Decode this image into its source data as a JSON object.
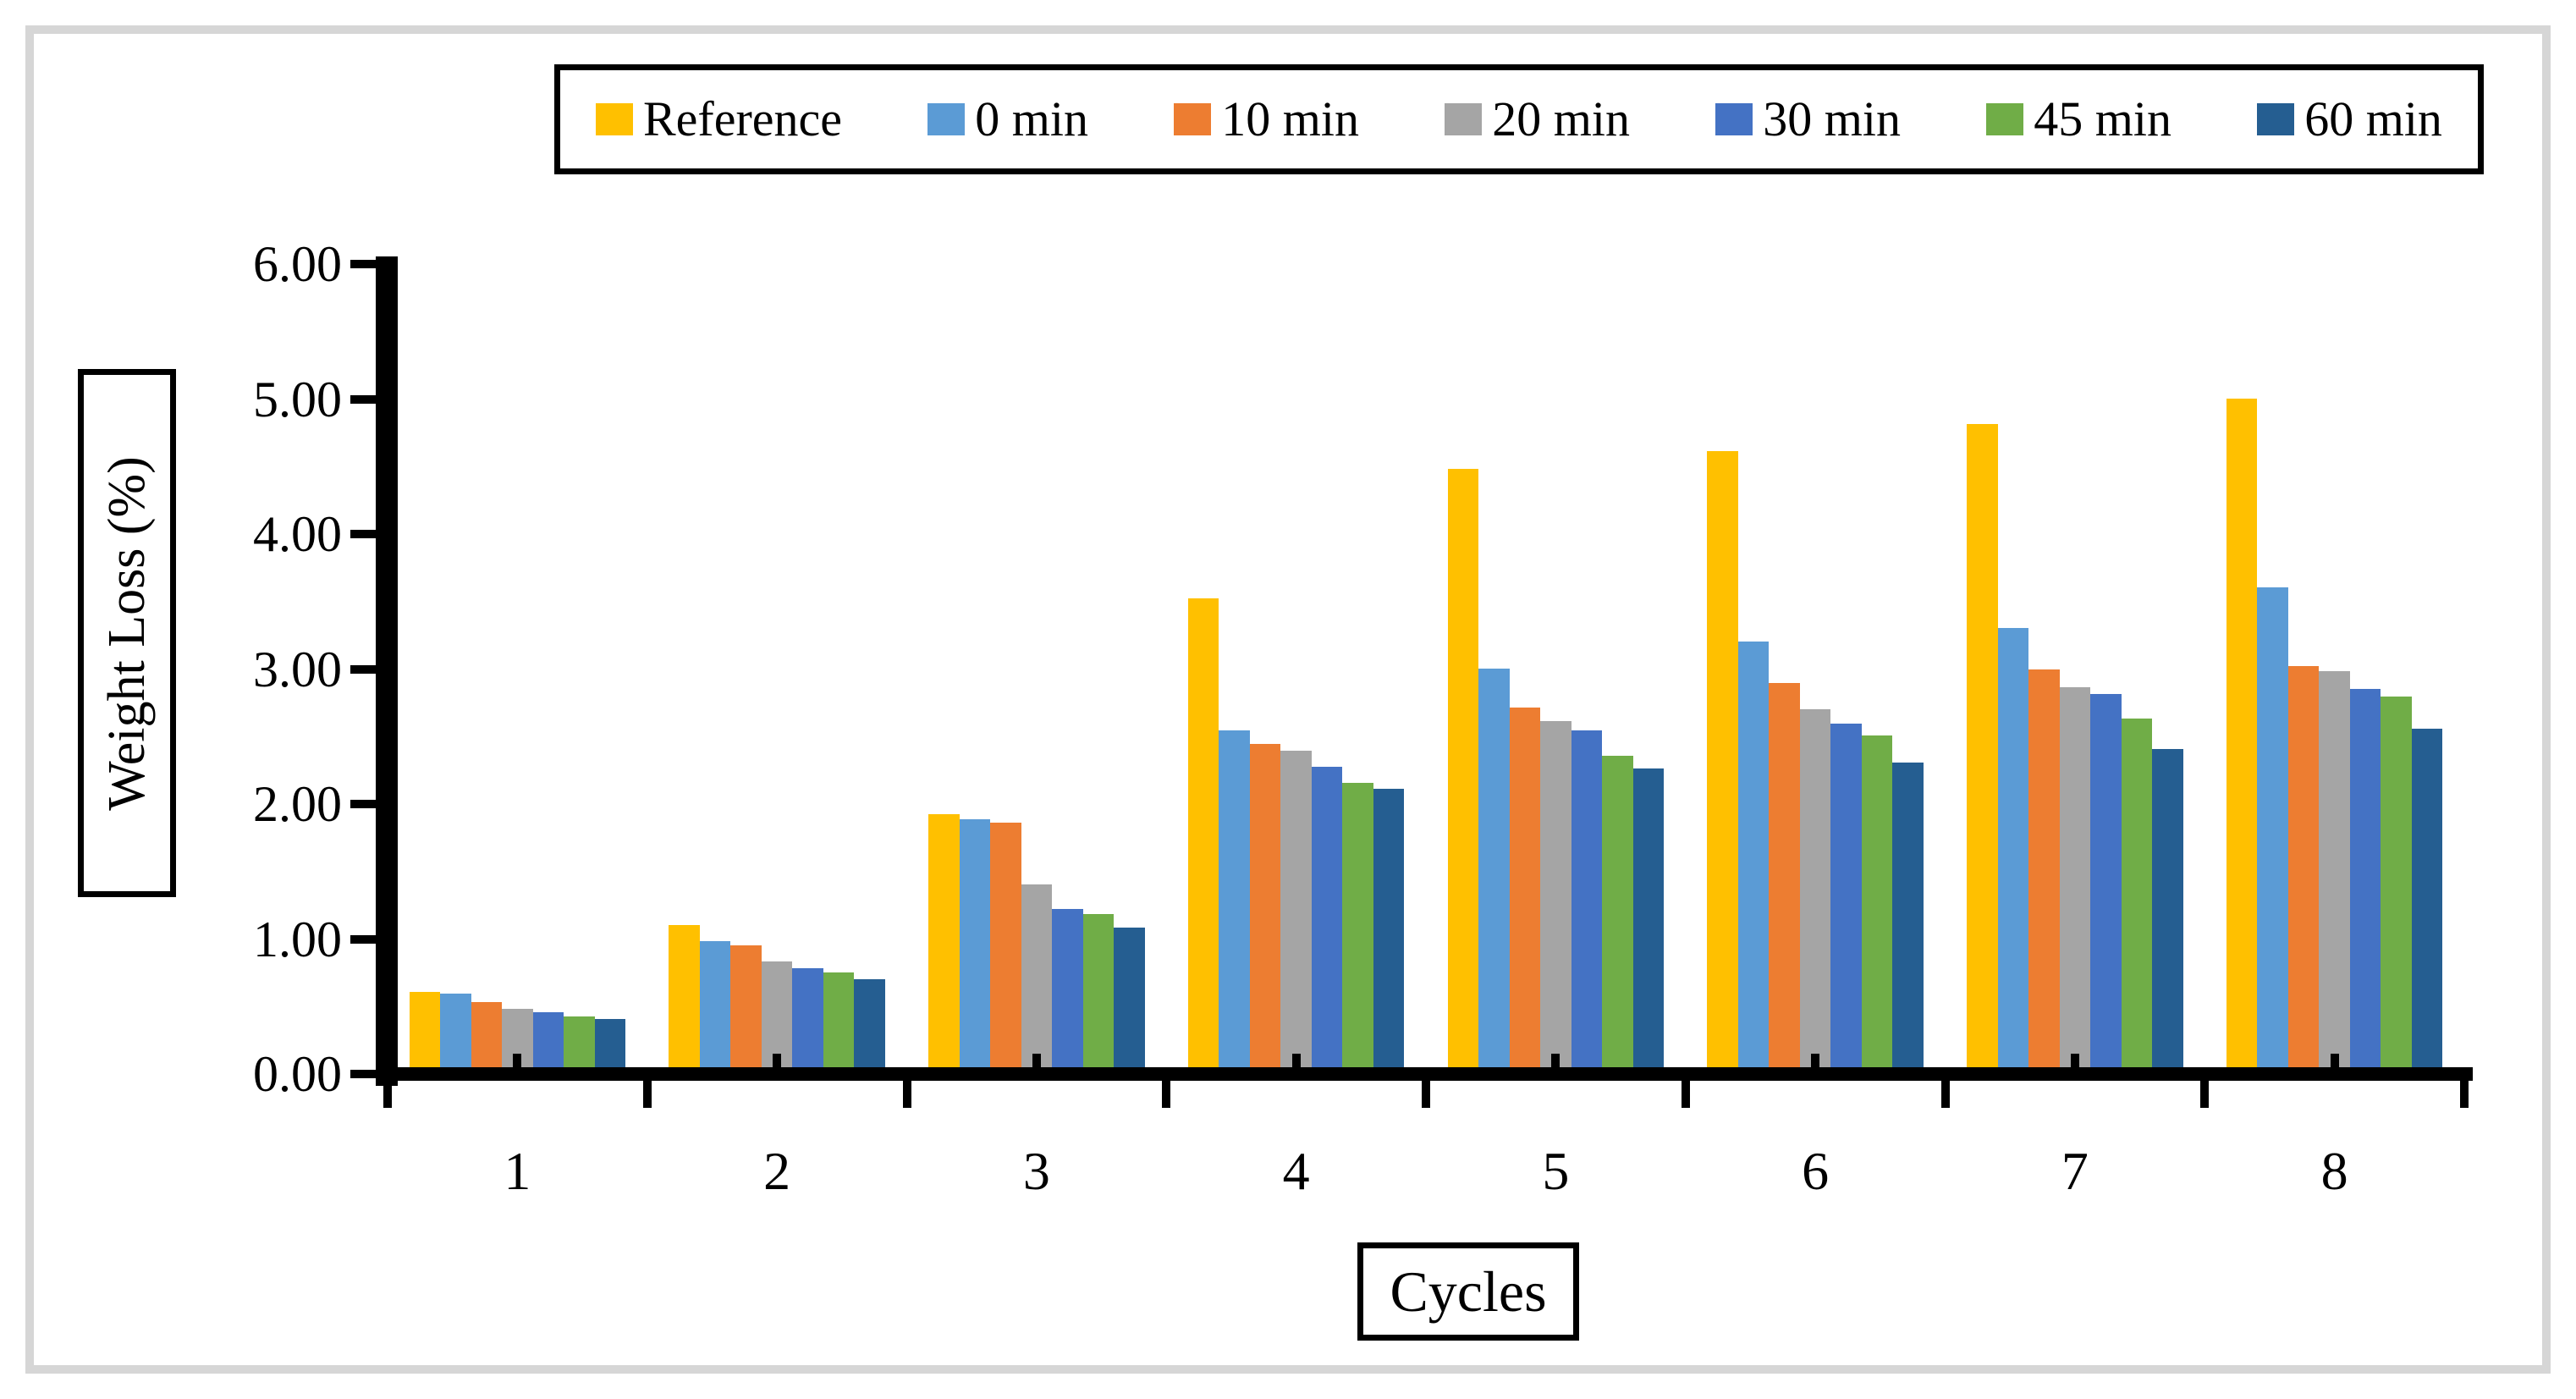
{
  "figure": {
    "frame_border_color": "#d6d6d6",
    "background_color": "#ffffff",
    "axis_color": "#000000"
  },
  "legend": {
    "position": "top",
    "items": [
      {
        "label": "Reference",
        "color": "#FFC000"
      },
      {
        "label": "0 min",
        "color": "#5B9BD5"
      },
      {
        "label": "10 min",
        "color": "#ED7D31"
      },
      {
        "label": "20 min",
        "color": "#A5A5A5"
      },
      {
        "label": "30 min",
        "color": "#4472C4"
      },
      {
        "label": "45 min",
        "color": "#70AD47"
      },
      {
        "label": "60 min",
        "color": "#255E91"
      }
    ]
  },
  "chart_data": {
    "type": "bar",
    "title": "",
    "xlabel": "Cycles",
    "ylabel": "Weight Loss (%)",
    "ylim": [
      0,
      6
    ],
    "y_ticks": [
      "0.00",
      "1.00",
      "2.00",
      "3.00",
      "4.00",
      "5.00",
      "6.00"
    ],
    "grid": false,
    "legend_position": "top",
    "categories": [
      "1",
      "2",
      "3",
      "4",
      "5",
      "6",
      "7",
      "8"
    ],
    "series": [
      {
        "name": "Reference",
        "color": "#FFC000",
        "values": [
          0.58,
          1.08,
          1.9,
          3.5,
          4.46,
          4.59,
          4.79,
          4.98
        ]
      },
      {
        "name": "0 min",
        "color": "#5B9BD5",
        "values": [
          0.57,
          0.96,
          1.86,
          2.52,
          2.98,
          3.18,
          3.28,
          3.58
        ]
      },
      {
        "name": "10 min",
        "color": "#ED7D31",
        "values": [
          0.51,
          0.93,
          1.84,
          2.42,
          2.69,
          2.87,
          2.97,
          3.0
        ]
      },
      {
        "name": "20 min",
        "color": "#A5A5A5",
        "values": [
          0.46,
          0.81,
          1.38,
          2.37,
          2.59,
          2.68,
          2.84,
          2.96
        ]
      },
      {
        "name": "30 min",
        "color": "#4472C4",
        "values": [
          0.43,
          0.76,
          1.2,
          2.25,
          2.52,
          2.57,
          2.79,
          2.83
        ]
      },
      {
        "name": "45 min",
        "color": "#70AD47",
        "values": [
          0.4,
          0.73,
          1.16,
          2.13,
          2.33,
          2.48,
          2.61,
          2.77
        ]
      },
      {
        "name": "60 min",
        "color": "#255E91",
        "values": [
          0.38,
          0.68,
          1.06,
          2.09,
          2.24,
          2.28,
          2.38,
          2.53
        ]
      }
    ]
  }
}
